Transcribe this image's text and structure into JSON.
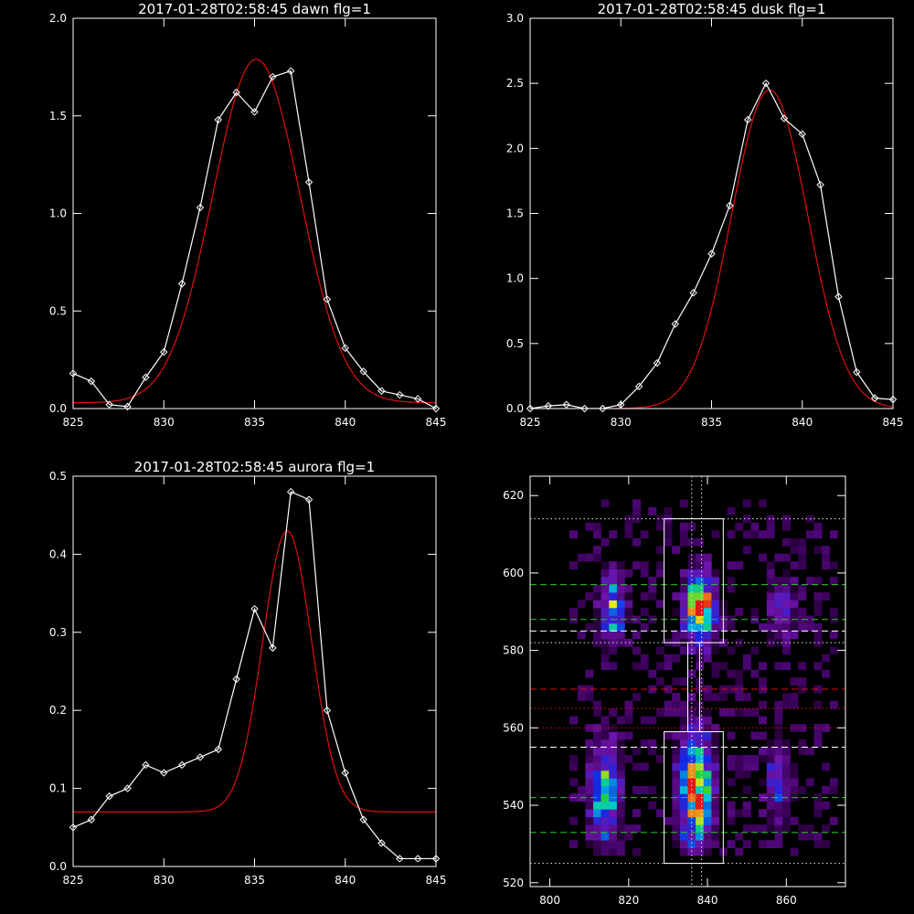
{
  "colors": {
    "background": "#000000",
    "axes": "#ffffff",
    "data": "#ffffff",
    "fit": "#e01010",
    "guide_green": "#22cc22",
    "guide_red": "#e01010",
    "guide_white": "#ffffff"
  },
  "chart_data": [
    {
      "type": "line",
      "title": "2017-01-28T02:58:45 dawn flg=1",
      "xlim": [
        825,
        845
      ],
      "ylim": [
        0,
        2.0
      ],
      "xticks": [
        825,
        830,
        835,
        840,
        845
      ],
      "xtick_labels": [
        "825",
        "830",
        "835",
        "840",
        "845"
      ],
      "yticks": [
        0,
        0.5,
        1.0,
        1.5,
        2.0
      ],
      "ytick_labels": [
        "0.0",
        "0.5",
        "1.0",
        "1.5",
        "2.0"
      ],
      "series": [
        {
          "role": "data",
          "marker": "diamond",
          "x": [
            825,
            826,
            827,
            828,
            829,
            830,
            831,
            832,
            833,
            834,
            835,
            836,
            837,
            838,
            839,
            840,
            841,
            842,
            843,
            844,
            845
          ],
          "y": [
            0.18,
            0.14,
            0.02,
            0.01,
            0.16,
            0.29,
            0.64,
            1.03,
            1.48,
            1.62,
            1.52,
            1.7,
            1.73,
            1.16,
            0.56,
            0.31,
            0.19,
            0.09,
            0.07,
            0.05,
            0.0
          ]
        },
        {
          "role": "fit",
          "shape": "gaussian",
          "center": 835.1,
          "amplitude": 1.76,
          "sigma": 2.4,
          "offset": 0.03
        }
      ]
    },
    {
      "type": "line",
      "title": "2017-01-28T02:58:45 dusk flg=1",
      "xlim": [
        825,
        845
      ],
      "ylim": [
        0,
        3.0
      ],
      "xticks": [
        825,
        830,
        835,
        840,
        845
      ],
      "xtick_labels": [
        "825",
        "830",
        "835",
        "840",
        "845"
      ],
      "yticks": [
        0,
        0.5,
        1.0,
        1.5,
        2.0,
        2.5,
        3.0
      ],
      "ytick_labels": [
        "0.0",
        "0.5",
        "1.0",
        "1.5",
        "2.0",
        "2.5",
        "3.0"
      ],
      "series": [
        {
          "role": "data",
          "marker": "diamond",
          "x": [
            825,
            826,
            827,
            828,
            829,
            830,
            831,
            832,
            833,
            834,
            835,
            836,
            837,
            838,
            839,
            840,
            841,
            842,
            843,
            844,
            845
          ],
          "y": [
            0.0,
            0.02,
            0.03,
            0.0,
            0.0,
            0.03,
            0.17,
            0.35,
            0.65,
            0.89,
            1.19,
            1.56,
            2.22,
            2.5,
            2.23,
            2.11,
            1.72,
            0.86,
            0.28,
            0.08,
            0.07
          ]
        },
        {
          "role": "fit",
          "shape": "gaussian",
          "center": 838.2,
          "amplitude": 2.45,
          "sigma": 2.1,
          "offset": 0.0
        }
      ]
    },
    {
      "type": "line",
      "title": "2017-01-28T02:58:45 aurora flg=1",
      "xlim": [
        825,
        845
      ],
      "ylim": [
        0,
        0.5
      ],
      "xticks": [
        825,
        830,
        835,
        840,
        845
      ],
      "xtick_labels": [
        "825",
        "830",
        "835",
        "840",
        "845"
      ],
      "yticks": [
        0,
        0.1,
        0.2,
        0.3,
        0.4,
        0.5
      ],
      "ytick_labels": [
        "0.0",
        "0.1",
        "0.2",
        "0.3",
        "0.4",
        "0.5"
      ],
      "series": [
        {
          "role": "data",
          "marker": "diamond",
          "x": [
            825,
            826,
            827,
            828,
            829,
            830,
            831,
            832,
            833,
            834,
            835,
            836,
            837,
            838,
            839,
            840,
            841,
            842,
            843,
            844,
            845
          ],
          "y": [
            0.05,
            0.06,
            0.09,
            0.1,
            0.13,
            0.12,
            0.13,
            0.14,
            0.15,
            0.24,
            0.33,
            0.28,
            0.48,
            0.47,
            0.2,
            0.12,
            0.06,
            0.03,
            0.01,
            0.01,
            0.01
          ]
        },
        {
          "role": "fit",
          "shape": "gaussian",
          "center": 836.8,
          "amplitude": 0.36,
          "sigma": 1.35,
          "offset": 0.07
        }
      ]
    },
    {
      "type": "heatmap",
      "title": "",
      "xlim": [
        795,
        875
      ],
      "ylim": [
        519,
        625
      ],
      "xticks": [
        800,
        820,
        840,
        860
      ],
      "xtick_labels": [
        "800",
        "820",
        "840",
        "860"
      ],
      "yticks": [
        520,
        540,
        560,
        580,
        600,
        620
      ],
      "ytick_labels": [
        "520",
        "540",
        "560",
        "580",
        "600",
        "620"
      ],
      "cell_size": [
        2,
        2
      ],
      "blobs": [
        {
          "x": 815,
          "y": 590,
          "sx": 2.2,
          "sy": 6,
          "amp": 0.55
        },
        {
          "x": 837,
          "y": 590,
          "sx": 2.6,
          "sy": 6,
          "amp": 1.0
        },
        {
          "x": 858,
          "y": 590,
          "sx": 2.2,
          "sy": 5,
          "amp": 0.35
        },
        {
          "x": 813,
          "y": 542,
          "sx": 2.6,
          "sy": 9,
          "amp": 0.6
        },
        {
          "x": 836,
          "y": 543,
          "sx": 2.8,
          "sy": 10,
          "amp": 0.95
        },
        {
          "x": 857,
          "y": 545,
          "sx": 2.4,
          "sy": 8,
          "amp": 0.3
        }
      ],
      "boxes": [
        {
          "x0": 829,
          "x1": 844,
          "y0": 582,
          "y1": 614
        },
        {
          "x0": 829,
          "x1": 844,
          "y0": 525,
          "y1": 559
        },
        {
          "x0": 835,
          "x1": 838,
          "y0": 559,
          "y1": 582
        }
      ],
      "hlines": [
        {
          "y": 614,
          "style": "dotted",
          "color": "#e8e8e8"
        },
        {
          "y": 597,
          "style": "dashed",
          "color": "#22cc22"
        },
        {
          "y": 588,
          "style": "dashed",
          "color": "#22cc22"
        },
        {
          "y": 585,
          "style": "dashed",
          "color": "#ffffff"
        },
        {
          "y": 582,
          "style": "dotted",
          "color": "#e8e8e8"
        },
        {
          "y": 570,
          "style": "dashed",
          "color": "#e01010"
        },
        {
          "y": 565,
          "style": "dotted",
          "color": "#e01010"
        },
        {
          "y": 560,
          "style": "dotted",
          "color": "#e01010"
        },
        {
          "y": 555,
          "style": "dashed",
          "color": "#ffffff"
        },
        {
          "y": 542,
          "style": "dashed",
          "color": "#22cc22"
        },
        {
          "y": 533,
          "style": "dashed",
          "color": "#22cc22"
        },
        {
          "y": 525,
          "style": "dotted",
          "color": "#e8e8e8"
        }
      ],
      "vlines": [
        {
          "x": 836,
          "style": "dotted",
          "color": "#e8e8e8"
        },
        {
          "x": 838.5,
          "style": "dotted",
          "color": "#e8e8e8"
        }
      ]
    }
  ]
}
